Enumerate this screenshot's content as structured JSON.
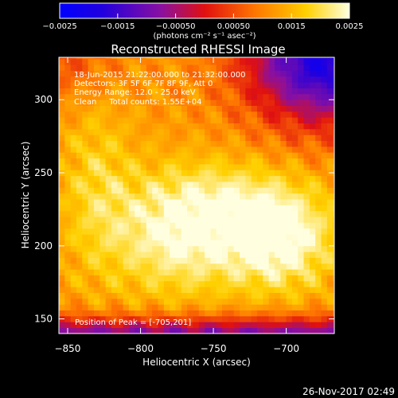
{
  "chart_data": {
    "type": "heatmap",
    "title": "Reconstructed RHESSI Image",
    "xlabel": "Heliocentric X (arcsec)",
    "ylabel": "Heliocentric Y (arcsec)",
    "xlim": [
      -856,
      -667
    ],
    "ylim": [
      140,
      329
    ],
    "xticks": [
      -850,
      -800,
      -750,
      -700
    ],
    "yticks": [
      150,
      200,
      250,
      300
    ],
    "colorbar": {
      "min": -0.0025,
      "max": 0.0025,
      "ticks": [
        -0.0025,
        -0.0015,
        -0.0005,
        0.0005,
        0.0015,
        0.0025
      ],
      "tick_labels": [
        "−0.0025",
        "−0.0015",
        "−0.00050",
        "0.00050",
        "0.0015",
        "0.0025"
      ],
      "units_label": "(photons cm⁻² s⁻¹ asec⁻²)",
      "colormap": "blue-purple-red-orange-yellow-white"
    },
    "annotations": [
      "18-Jun-2015 21:22:00.000 to 21:32:00.000",
      "Detectors: 3F 5F 6F 7F 8F 9F, Att 0",
      "Energy Range: 12.0 - 25.0 keV",
      "Clean     Total counts: 1.55E+04"
    ],
    "peak_label": "Position of Peak = [-705,201]",
    "peak": {
      "x": -705,
      "y": 201,
      "value": 0.0025
    },
    "grid": false
  },
  "footer": {
    "date": "26-Nov-2017 02:49"
  }
}
